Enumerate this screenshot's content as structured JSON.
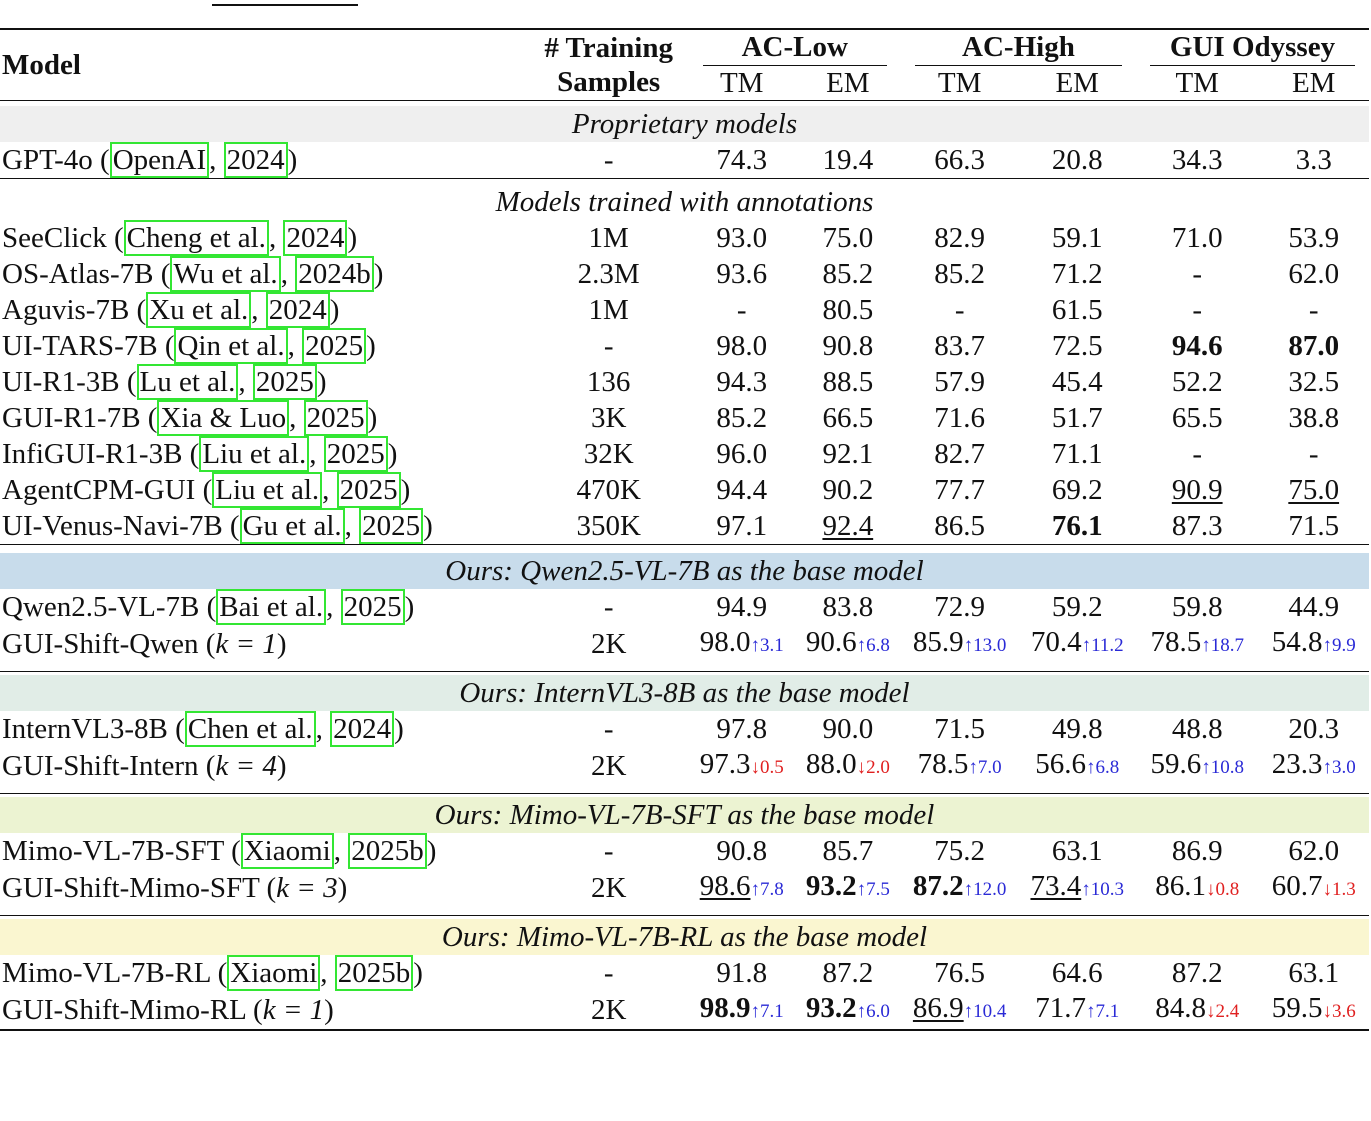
{
  "header": {
    "model": "Model",
    "training_l1": "# Training",
    "training_l2": "Samples",
    "groups": [
      "AC-Low",
      "AC-High",
      "GUI Odyssey"
    ],
    "metrics": [
      "TM",
      "EM",
      "TM",
      "EM",
      "TM",
      "EM"
    ]
  },
  "sections": {
    "proprietary": "Proprietary models",
    "annotations": "Models trained with annotations",
    "qwen": "Ours: Qwen2.5-VL-7B as the base model",
    "intern": "Ours: InternVL3-8B as the base model",
    "mimo_sft": "Ours: Mimo-VL-7B-SFT as the base model",
    "mimo_rl": "Ours: Mimo-VL-7B-RL as the base model"
  },
  "rows": {
    "gpt4o": {
      "name": "GPT-4o (",
      "cite1": "OpenAI",
      "sep": ", ",
      "cite2": "2024",
      "end": ")",
      "samples": "-",
      "v": [
        "74.3",
        "19.4",
        "66.3",
        "20.8",
        "34.3",
        "3.3"
      ]
    },
    "seeclick": {
      "name": "SeeClick (",
      "cite1": "Cheng et al.",
      "sep": ", ",
      "cite2": "2024",
      "end": ")",
      "samples": "1M",
      "v": [
        "93.0",
        "75.0",
        "82.9",
        "59.1",
        "71.0",
        "53.9"
      ]
    },
    "osatlas": {
      "name": "OS-Atlas-7B (",
      "cite1": "Wu et al.",
      "sep": ", ",
      "cite2": "2024b",
      "end": ")",
      "samples": "2.3M",
      "v": [
        "93.6",
        "85.2",
        "85.2",
        "71.2",
        "-",
        "62.0"
      ]
    },
    "aguvis": {
      "name": "Aguvis-7B (",
      "cite1": "Xu et al.",
      "sep": ", ",
      "cite2": "2024",
      "end": ")",
      "samples": "1M",
      "v": [
        "-",
        "80.5",
        "-",
        "61.5",
        "-",
        "-"
      ]
    },
    "uitars": {
      "name": "UI-TARS-7B (",
      "cite1": "Qin et al.",
      "sep": ", ",
      "cite2": "2025",
      "end": ")",
      "samples": "-",
      "v": [
        "98.0",
        "90.8",
        "83.7",
        "72.5",
        "94.6",
        "87.0"
      ]
    },
    "uir1": {
      "name": "UI-R1-3B (",
      "cite1": "Lu et al.",
      "sep": ", ",
      "cite2": "2025",
      "end": ")",
      "samples": "136",
      "v": [
        "94.3",
        "88.5",
        "57.9",
        "45.4",
        "52.2",
        "32.5"
      ]
    },
    "guir1": {
      "name": "GUI-R1-7B (",
      "cite1": "Xia & Luo",
      "sep": ", ",
      "cite2": "2025",
      "end": ")",
      "samples": "3K",
      "v": [
        "85.2",
        "66.5",
        "71.6",
        "51.7",
        "65.5",
        "38.8"
      ]
    },
    "infigui": {
      "name": "InfiGUI-R1-3B (",
      "cite1": "Liu et al.",
      "sep": ", ",
      "cite2": "2025",
      "end": ")",
      "samples": "32K",
      "v": [
        "96.0",
        "92.1",
        "82.7",
        "71.1",
        "-",
        "-"
      ]
    },
    "agentcpm": {
      "name": "AgentCPM-GUI (",
      "cite1": "Liu et al.",
      "sep": ", ",
      "cite2": "2025",
      "end": ")",
      "samples": "470K",
      "v": [
        "94.4",
        "90.2",
        "77.7",
        "69.2",
        "90.9",
        "75.0"
      ]
    },
    "uivenus": {
      "name": "UI-Venus-Navi-7B (",
      "cite1": "Gu et al.",
      "sep": ", ",
      "cite2": "2025",
      "end": ")",
      "samples": "350K",
      "v": [
        "97.1",
        "92.4",
        "86.5",
        "76.1",
        "87.3",
        "71.5"
      ]
    },
    "qwen": {
      "name": "Qwen2.5-VL-7B (",
      "cite1": "Bai et al.",
      "sep": ", ",
      "cite2": "2025",
      "end": ")",
      "samples": "-",
      "v": [
        "94.9",
        "83.8",
        "72.9",
        "59.2",
        "59.8",
        "44.9"
      ]
    },
    "shift_qwen": {
      "name": "GUI-Shift-Qwen (",
      "k": "k = 1",
      "end": ")",
      "samples": "2K",
      "v": [
        "98.0",
        "90.6",
        "85.9",
        "70.4",
        "78.5",
        "54.8"
      ],
      "d": [
        "↑3.1",
        "↑6.8",
        "↑13.0",
        "↑11.2",
        "↑18.7",
        "↑9.9"
      ]
    },
    "intern": {
      "name": "InternVL3-8B (",
      "cite1": "Chen et al.",
      "sep": ", ",
      "cite2": "2024",
      "end": ")",
      "samples": "-",
      "v": [
        "97.8",
        "90.0",
        "71.5",
        "49.8",
        "48.8",
        "20.3"
      ]
    },
    "shift_intern": {
      "name": "GUI-Shift-Intern (",
      "k": "k = 4",
      "end": ")",
      "samples": "2K",
      "v": [
        "97.3",
        "88.0",
        "78.5",
        "56.6",
        "59.6",
        "23.3"
      ],
      "d": [
        "↓0.5",
        "↓2.0",
        "↑7.0",
        "↑6.8",
        "↑10.8",
        "↑3.0"
      ]
    },
    "mimo_sft": {
      "name": "Mimo-VL-7B-SFT (",
      "cite1": "Xiaomi",
      "sep": ", ",
      "cite2": "2025b",
      "end": ")",
      "samples": "-",
      "v": [
        "90.8",
        "85.7",
        "75.2",
        "63.1",
        "86.9",
        "62.0"
      ]
    },
    "shift_sft": {
      "name": "GUI-Shift-Mimo-SFT (",
      "k": "k = 3",
      "end": ")",
      "samples": "2K",
      "v": [
        "98.6",
        "93.2",
        "87.2",
        "73.4",
        "86.1",
        "60.7"
      ],
      "d": [
        "↑7.8",
        "↑7.5",
        "↑12.0",
        "↑10.3",
        "↓0.8",
        "↓1.3"
      ]
    },
    "mimo_rl": {
      "name": "Mimo-VL-7B-RL (",
      "cite1": "Xiaomi",
      "sep": ", ",
      "cite2": "2025b",
      "end": ")",
      "samples": "-",
      "v": [
        "91.8",
        "87.2",
        "76.5",
        "64.6",
        "87.2",
        "63.1"
      ]
    },
    "shift_rl": {
      "name": "GUI-Shift-Mimo-RL (",
      "k": "k = 1",
      "end": ")",
      "samples": "2K",
      "v": [
        "98.9",
        "93.2",
        "86.9",
        "71.7",
        "84.8",
        "59.5"
      ],
      "d": [
        "↑7.1",
        "↑6.0",
        "↑10.4",
        "↑7.1",
        "↓2.4",
        "↓3.6"
      ]
    }
  },
  "colors": {
    "citation_box": "#33e633",
    "increase": "#2a2ad6",
    "decrease": "#e02020"
  }
}
